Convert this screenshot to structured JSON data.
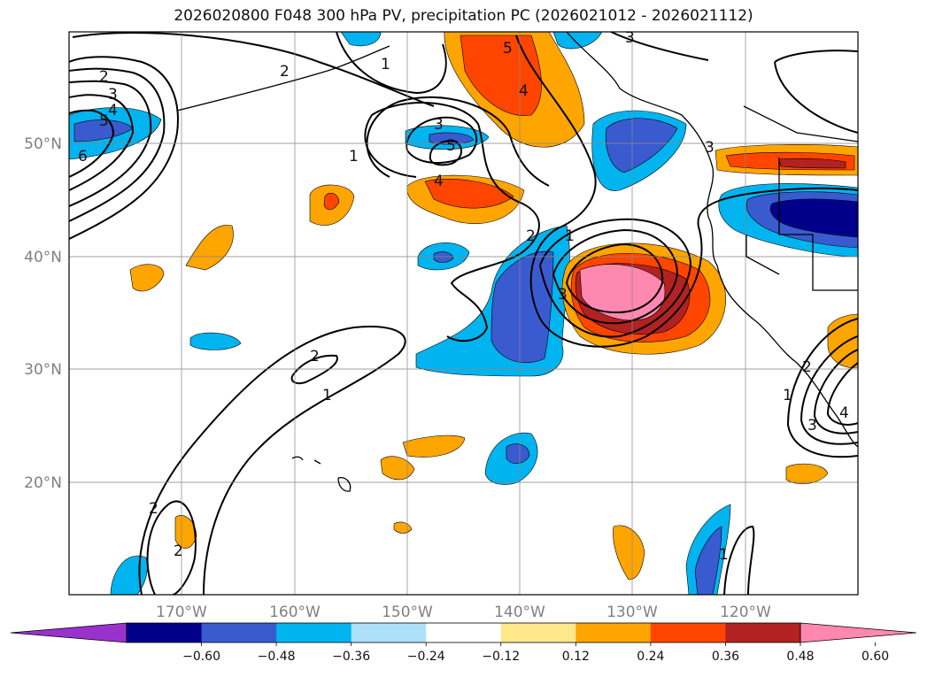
{
  "title": "2026020800 F048 300 hPa PV, precipitation PC (2026021012 - 2026021112)",
  "map": {
    "lon_range": [
      -180,
      -110
    ],
    "lat_range": [
      10,
      60
    ],
    "lon_labels": [
      "170°W",
      "160°W",
      "150°W",
      "140°W",
      "130°W",
      "120°W"
    ],
    "lat_labels": [
      "50°N",
      "40°N",
      "30°N",
      "20°N"
    ],
    "contour_labels": [
      "2",
      "3",
      "4",
      "5",
      "6",
      "2",
      "1",
      "1",
      "3",
      "5",
      "4",
      "3",
      "3",
      "1",
      "2",
      "4",
      "5",
      "3",
      "2",
      "1",
      "2",
      "2",
      "1",
      "1",
      "2",
      "3",
      "4"
    ]
  },
  "colorbar": {
    "ticks": [
      "−0.60",
      "−0.48",
      "−0.36",
      "−0.24",
      "−0.12",
      "0.12",
      "0.24",
      "0.36",
      "0.48",
      "0.60"
    ],
    "colors": [
      "#9932cc",
      "#00008b",
      "#3a5bcf",
      "#00b4f0",
      "#aee0fa",
      "#ffffff",
      "#ffe88a",
      "#ffa500",
      "#ff4500",
      "#b22222",
      "#ff88b0"
    ]
  }
}
